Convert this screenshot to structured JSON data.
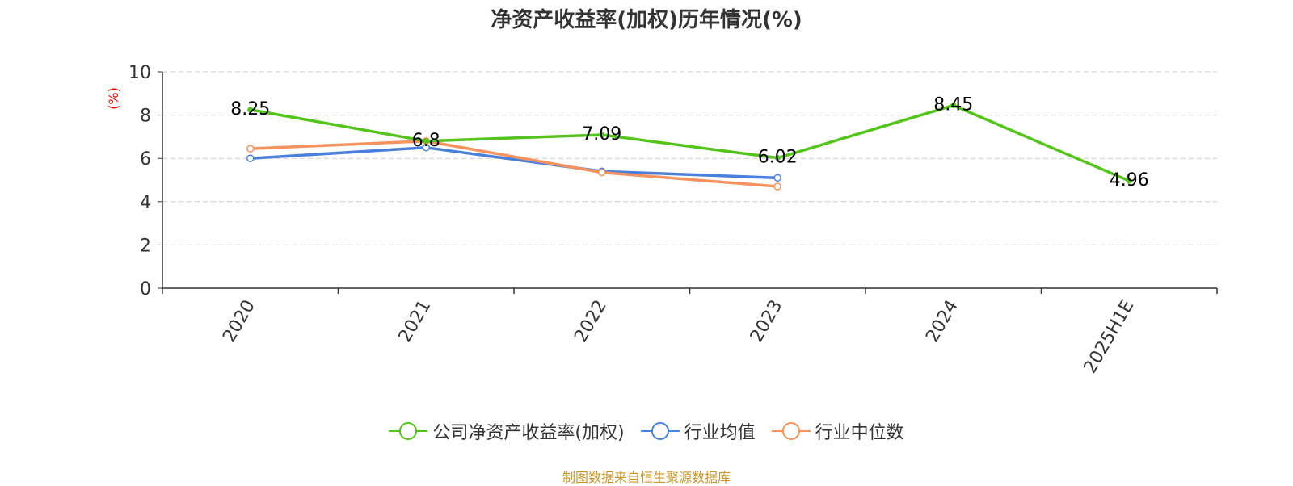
{
  "chart_data": {
    "type": "line",
    "title": "净资产收益率(加权)历年情况(%)",
    "ylabel": "(%)",
    "xlabel": "",
    "categories": [
      "2020",
      "2021",
      "2022",
      "2023",
      "2024",
      "2025H1E"
    ],
    "ylim": [
      0,
      10
    ],
    "yticks": [
      0,
      2,
      4,
      6,
      8,
      10
    ],
    "grid": true,
    "legend_position": "bottom",
    "series": [
      {
        "name": "公司净资产收益率(加权)",
        "color": "#52c41a",
        "values": [
          8.25,
          6.8,
          7.09,
          6.02,
          8.45,
          4.96
        ],
        "labels": [
          "8.25",
          "6.8",
          "7.09",
          "6.02",
          "8.45",
          "4.96"
        ]
      },
      {
        "name": "行业均值",
        "color": "#4a7fdc",
        "values": [
          6.0,
          6.5,
          5.4,
          5.1,
          null,
          null
        ]
      },
      {
        "name": "行业中位数",
        "color": "#f5925e",
        "values": [
          6.45,
          6.8,
          5.35,
          4.7,
          null,
          null
        ]
      }
    ]
  },
  "source_text": "制图数据来自恒生聚源数据库"
}
